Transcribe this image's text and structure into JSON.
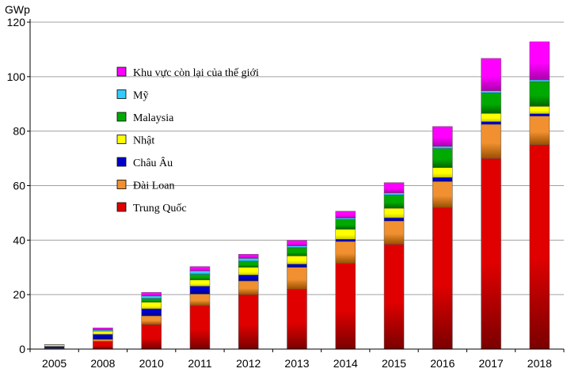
{
  "chart_data": {
    "type": "bar",
    "stacked": true,
    "unit_label": "GWp",
    "categories": [
      "2005",
      "2008",
      "2010",
      "2011",
      "2012",
      "2013",
      "2014",
      "2015",
      "2016",
      "2017",
      "2018"
    ],
    "ylim": [
      0,
      120
    ],
    "yticks": [
      0,
      20,
      40,
      60,
      80,
      100,
      120
    ],
    "grid": true,
    "legend_position": "upper-left",
    "series": [
      {
        "name": "Trung  Quốc",
        "color": "#e00000",
        "gradient_dark": "#7a0000",
        "values": [
          0.2,
          2.8,
          9.0,
          16.0,
          20.0,
          22.0,
          31.5,
          38.5,
          52.0,
          70.0,
          75.0
        ]
      },
      {
        "name": "Đài Loan",
        "color": "#f09030",
        "gradient_dark": "#9a5000",
        "values": [
          0.1,
          0.8,
          3.2,
          4.2,
          5.0,
          8.0,
          8.0,
          8.5,
          9.5,
          12.5,
          10.5
        ]
      },
      {
        "name": "Châu Âu",
        "color": "#0000cc",
        "gradient_dark": "#000066",
        "values": [
          0.7,
          1.8,
          2.6,
          2.9,
          2.2,
          1.2,
          0.8,
          1.2,
          1.5,
          1.0,
          0.9
        ]
      },
      {
        "name": "Nhật",
        "color": "#ffff00",
        "gradient_dark": "#cccc00",
        "values": [
          0.6,
          1.2,
          2.4,
          2.3,
          2.8,
          3.0,
          3.7,
          3.5,
          3.6,
          3.0,
          2.7
        ]
      },
      {
        "name": "Malaysia",
        "color": "#00aa00",
        "gradient_dark": "#006600",
        "values": [
          0.0,
          0.1,
          1.3,
          2.0,
          2.2,
          3.0,
          3.5,
          4.8,
          7.0,
          7.5,
          9.0
        ]
      },
      {
        "name": "Mỹ",
        "color": "#33ccff",
        "gradient_dark": "#0088bb",
        "values": [
          0.0,
          0.4,
          1.0,
          1.3,
          1.1,
          0.7,
          0.6,
          0.8,
          0.8,
          0.8,
          0.7
        ]
      },
      {
        "name": "Khu vực còn lại của thế giới",
        "color": "#ff00ff",
        "gradient_dark": "#aa00aa",
        "values": [
          0.1,
          0.7,
          1.3,
          1.6,
          1.5,
          2.0,
          2.5,
          3.8,
          7.3,
          11.9,
          14.0
        ]
      }
    ]
  }
}
